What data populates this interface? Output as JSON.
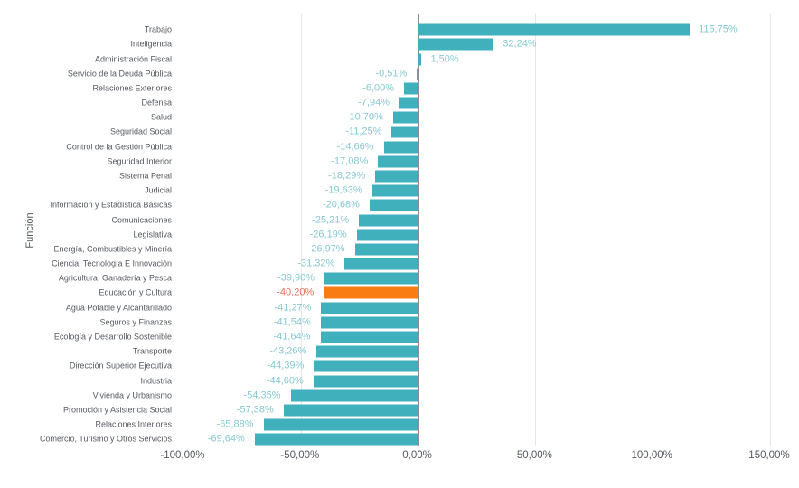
{
  "chart_data": {
    "type": "bar",
    "orientation": "horizontal",
    "title": "",
    "xlabel": "",
    "ylabel": "Función",
    "xlim": [
      -100,
      150
    ],
    "grid": true,
    "legend": "none",
    "x_tick_values": [
      -100,
      -50,
      0,
      50,
      100,
      150
    ],
    "x_tick_labels": [
      "-100,00%",
      "-50,00%",
      "0,00%",
      "50,00%",
      "100,00%",
      "150,00%"
    ],
    "categories": [
      "Trabajo",
      "Inteligencia",
      "Administración Fiscal",
      "Servicio de la Deuda Pública",
      "Relaciones Exteriores",
      "Defensa",
      "Salud",
      "Seguridad Social",
      "Control de la Gestión Pública",
      "Seguridad Interior",
      "Sistema Penal",
      "Judicial",
      "Información y Estadística Básicas",
      "Comunicaciones",
      "Legislativa",
      "Energía, Combustibles y Minería",
      "Ciencia, Tecnología E Innovación",
      "Agricultura, Ganadería y Pesca",
      "Educación y Cultura",
      "Agua Potable y Alcantarillado",
      "Seguros y Finanzas",
      "Ecología y Desarrollo Sostenible",
      "Transporte",
      "Dirección Superior Ejecutiva",
      "Industria",
      "Vivienda y Urbanismo",
      "Promoción y Asistencia Social",
      "Relaciones Interiores",
      "Comercio, Turismo y Otros Servicios"
    ],
    "values": [
      115.75,
      32.24,
      1.5,
      -0.51,
      -6.0,
      -7.94,
      -10.7,
      -11.25,
      -14.66,
      -17.08,
      -18.29,
      -19.63,
      -20.68,
      -25.21,
      -26.19,
      -26.97,
      -31.32,
      -39.9,
      -40.2,
      -41.27,
      -41.54,
      -41.64,
      -43.26,
      -44.39,
      -44.6,
      -54.35,
      -57.38,
      -65.88,
      -69.64
    ],
    "value_labels": [
      "115,75%",
      "32,24%",
      "1,50%",
      "-0,51%",
      "-6,00%",
      "-7,94%",
      "-10,70%",
      "-11,25%",
      "-14,66%",
      "-17,08%",
      "-18,29%",
      "-19,63%",
      "-20,68%",
      "-25,21%",
      "-26,19%",
      "-26,97%",
      "-31,32%",
      "-39,90%",
      "-40,20%",
      "-41,27%",
      "-41,54%",
      "-41,64%",
      "-43,26%",
      "-44,39%",
      "-44,60%",
      "-54,35%",
      "-57,38%",
      "-65,88%",
      "-69,64%"
    ],
    "highlighted_index": 18,
    "highlighted_category": "Educación y Cultura",
    "colors": {
      "bar": "#41b0bd",
      "bar_highlight": "#f97c13",
      "value_label": "#85c9d2",
      "value_label_highlight": "#eb7055",
      "axis_text": "#555a61",
      "grid": "#e6e6e6",
      "zero_line": "#8d8d8d",
      "axis_line": "#d2d2d2",
      "background": "#ffffff"
    }
  }
}
